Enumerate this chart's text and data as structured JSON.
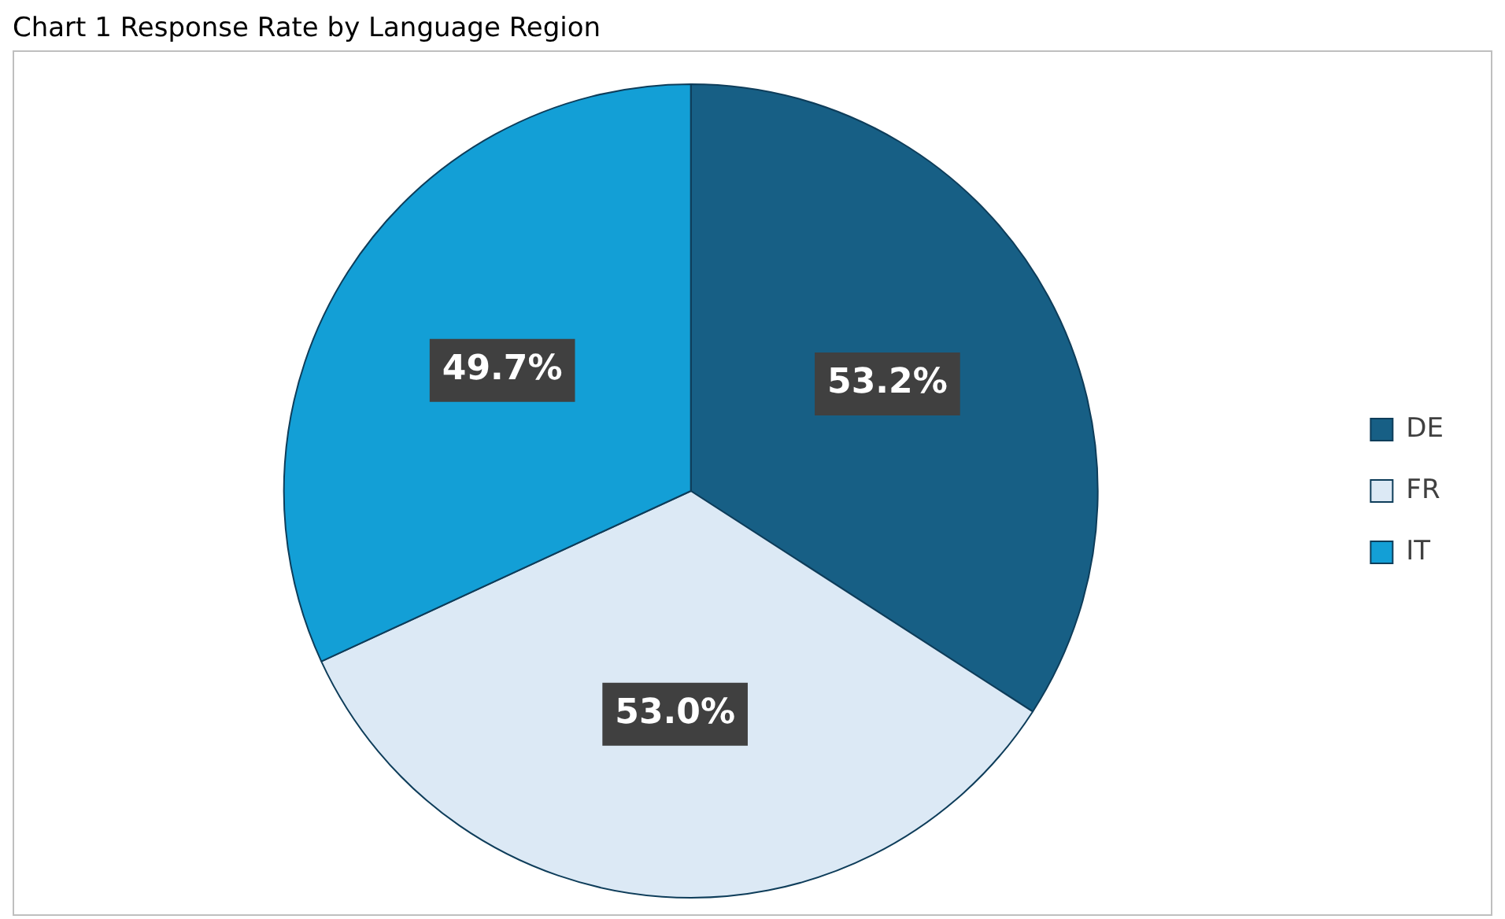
{
  "chart_data": {
    "type": "pie",
    "title": "Chart 1 Response Rate by Language Region",
    "categories": [
      "DE",
      "FR",
      "IT"
    ],
    "values": [
      53.2,
      53.0,
      49.7
    ],
    "colors": [
      "#175f85",
      "#dce9f5",
      "#139fd6"
    ],
    "value_labels": [
      "53.2%",
      "53.0%",
      "49.7%"
    ],
    "legend": "right"
  }
}
